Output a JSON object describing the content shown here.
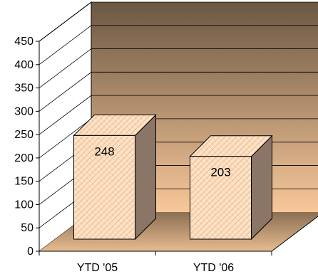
{
  "chart_data": {
    "type": "bar",
    "style": "3d",
    "title": "",
    "xlabel": "",
    "ylabel": "",
    "categories": [
      "YTD '05",
      "YTD '06"
    ],
    "values": [
      248,
      203
    ],
    "data_labels": [
      "248",
      "203"
    ],
    "ylim": [
      0,
      450
    ],
    "yticks": [
      0,
      50,
      100,
      150,
      200,
      250,
      300,
      350,
      400,
      450
    ],
    "ytick_labels": [
      "0",
      "50",
      "100",
      "150",
      "200",
      "250",
      "300",
      "350",
      "400",
      "450"
    ],
    "grid": true,
    "legend": "none",
    "colors": {
      "wall_top": "#6b5743",
      "wall_bottom": "#f8c89a",
      "floor_dark": "#8a6f53",
      "floor_light": "#e7bb8f",
      "bar_front": "#fbe3c8",
      "bar_pattern": "#f2b98c",
      "bar_side": "#8a7567",
      "bar_top": "#e8b98f",
      "gridline": "#000000",
      "axis": "#000000"
    }
  }
}
